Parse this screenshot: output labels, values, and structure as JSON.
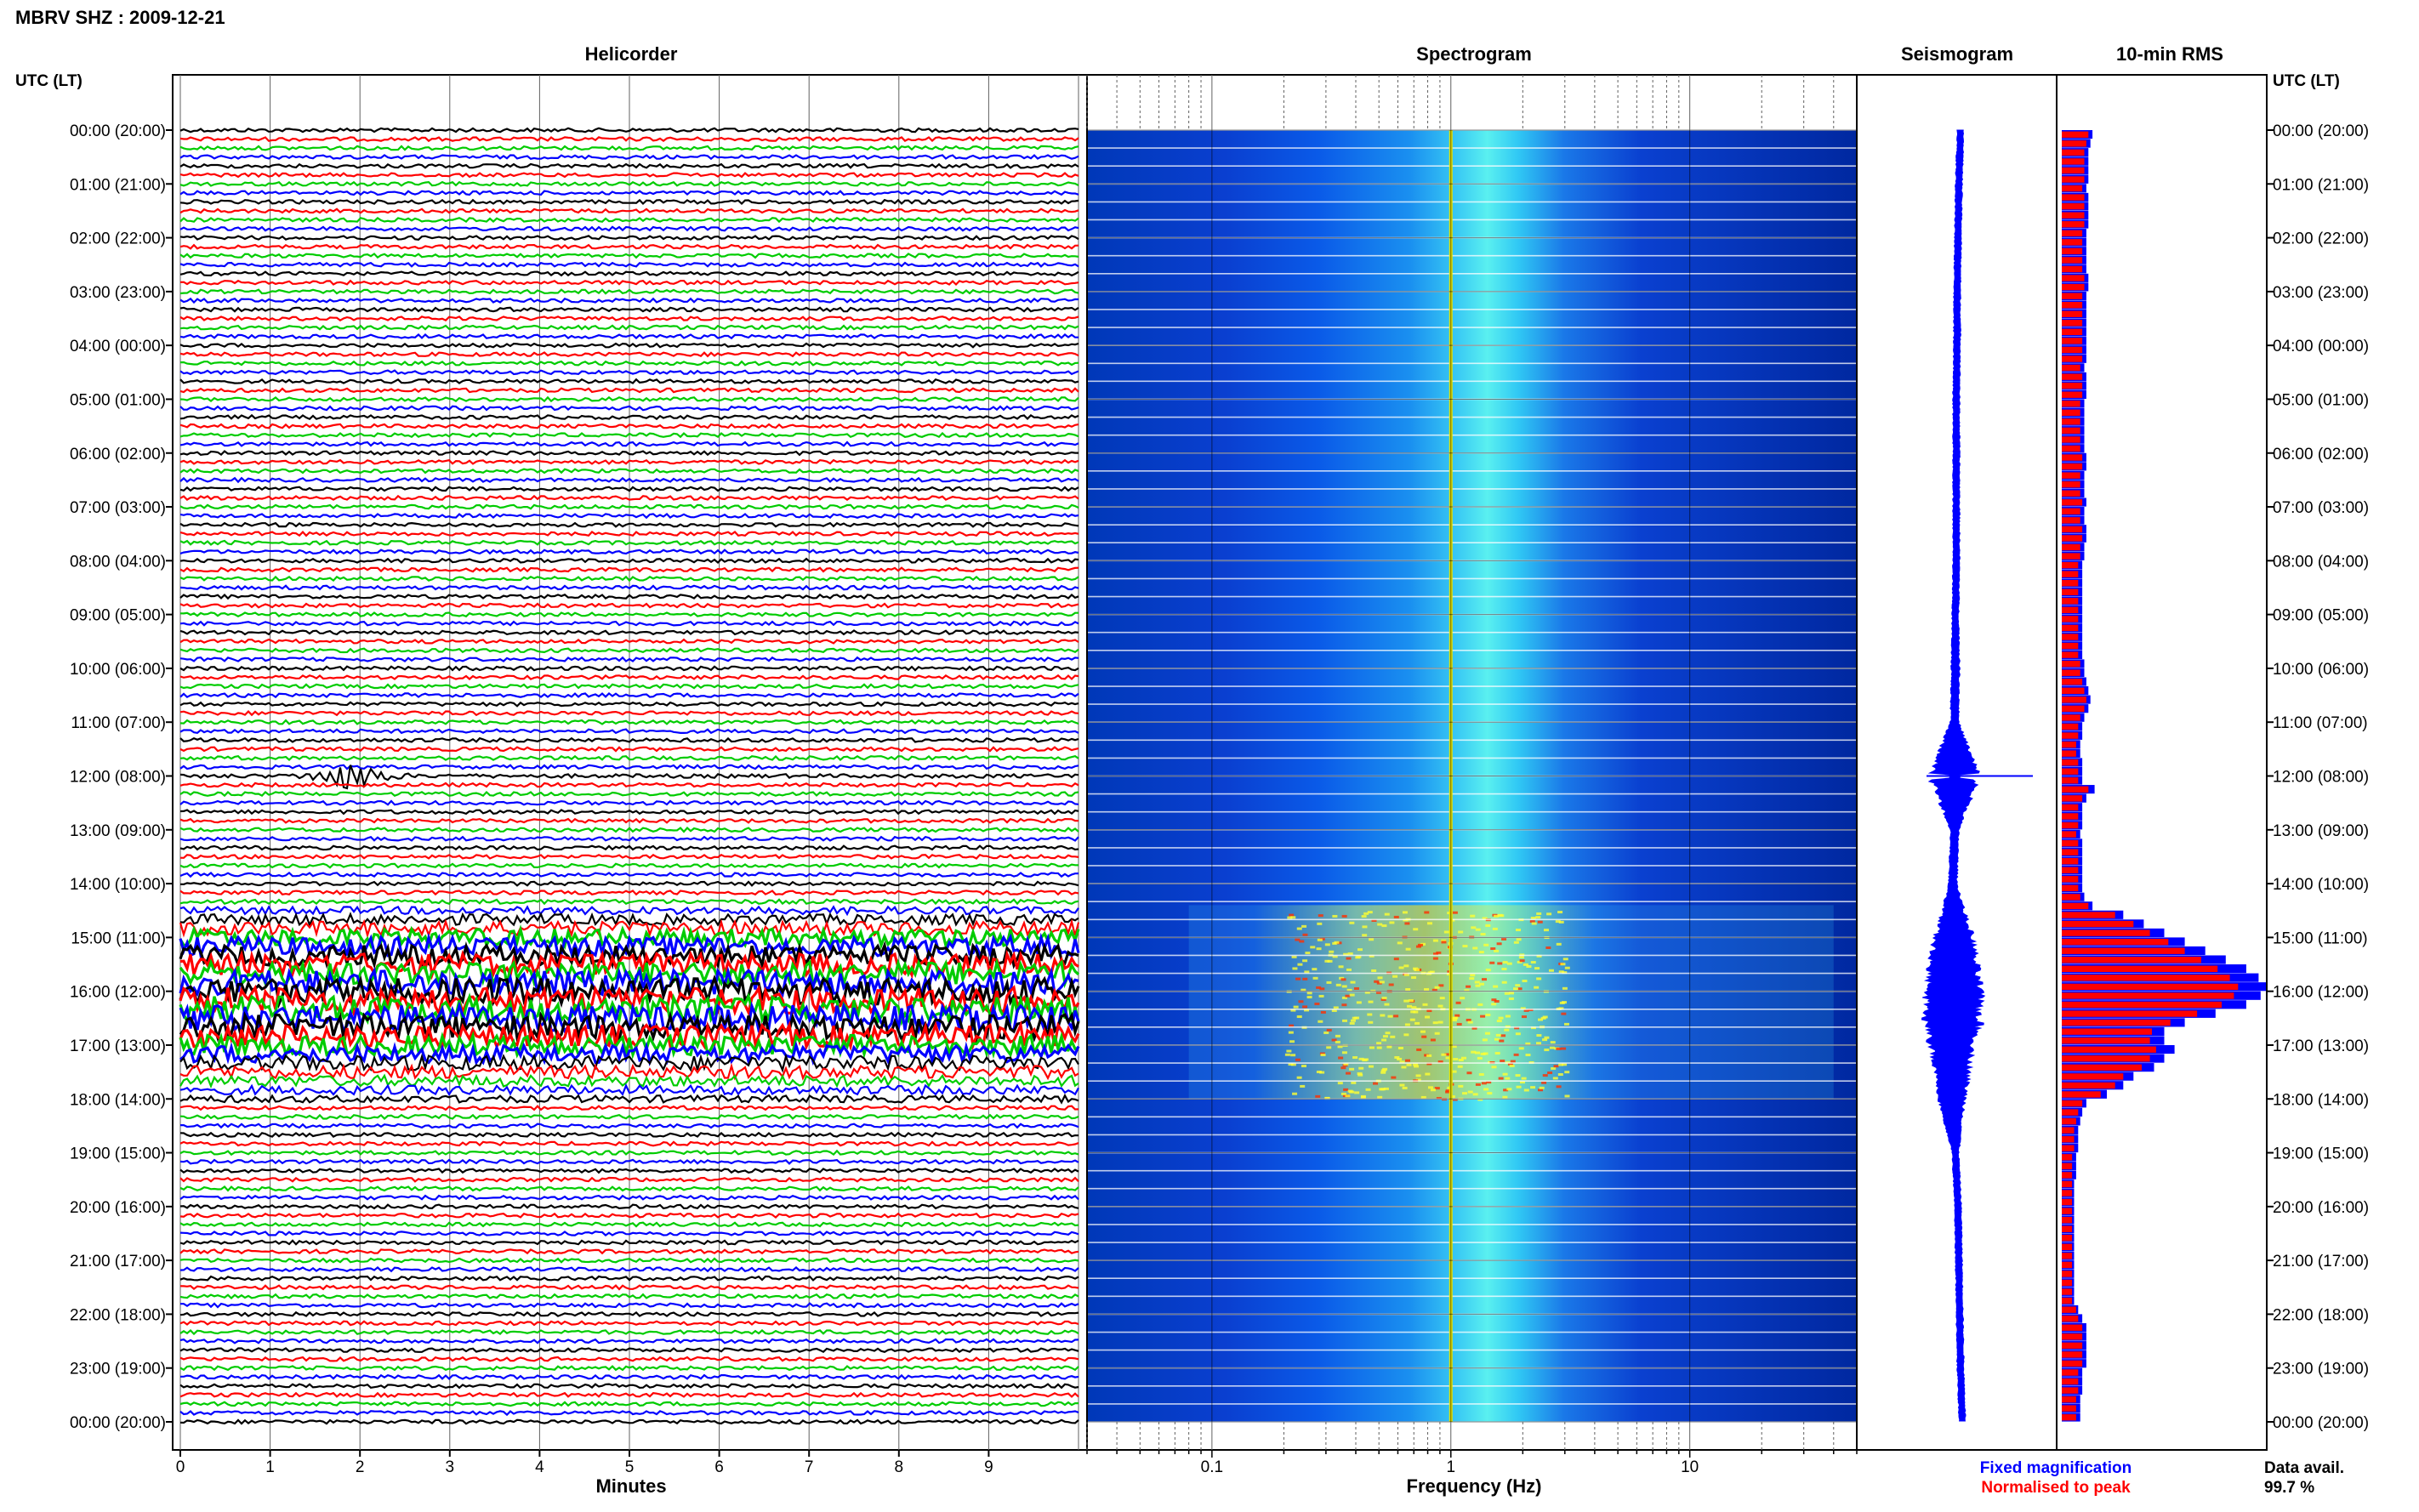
{
  "page": {
    "station_title": "MBRV SHZ : 2009-12-21",
    "panel_titles": {
      "helicorder": "Helicorder",
      "spectrogram": "Spectrogram",
      "seismogram": "Seismogram",
      "rms": "10-min RMS"
    },
    "time_axis_label_left": "UTC (LT)",
    "time_axis_label_right": "UTC (LT)",
    "legend": {
      "fixed": "Fixed magnification",
      "normalised": "Normalised to peak",
      "fixed_color": "#0000ff",
      "normalised_color": "#ff0000"
    },
    "data_avail_label": "Data avail.",
    "data_avail_value": "99.7 %"
  },
  "chart_data": [
    {
      "type": "line",
      "panel": "helicorder",
      "title": "Helicorder",
      "xlabel": "Minutes",
      "ylabel": "UTC (LT)",
      "xlim": [
        0,
        10
      ],
      "xticks": [
        "0",
        "1",
        "2",
        "3",
        "4",
        "5",
        "6",
        "7",
        "8",
        "9"
      ],
      "ytick_labels": [
        "00:00 (20:00)",
        "01:00 (21:00)",
        "02:00 (22:00)",
        "03:00 (23:00)",
        "04:00 (00:00)",
        "05:00 (01:00)",
        "06:00 (02:00)",
        "07:00 (03:00)",
        "08:00 (04:00)",
        "09:00 (05:00)",
        "10:00 (06:00)",
        "11:00 (07:00)",
        "12:00 (08:00)",
        "13:00 (09:00)",
        "14:00 (10:00)",
        "15:00 (11:00)",
        "16:00 (12:00)",
        "17:00 (13:00)",
        "18:00 (14:00)",
        "19:00 (15:00)",
        "20:00 (16:00)",
        "21:00 (17:00)",
        "22:00 (18:00)",
        "23:00 (19:00)",
        "00:00 (20:00)"
      ],
      "trace_colors": [
        "#000000",
        "#ff0000",
        "#00cc00",
        "#0000ff"
      ],
      "trace_count": 144,
      "events": [
        {
          "time_utc": "12:00",
          "minute_start": 1.2,
          "minute_end": 2.6,
          "amplitude": "large"
        }
      ],
      "tremor_episode": {
        "start_utc": "14:20",
        "peak_utc": "16:00",
        "end_utc": "18:00"
      }
    },
    {
      "type": "heatmap",
      "panel": "spectrogram",
      "title": "Spectrogram",
      "xlabel": "Frequency (Hz)",
      "xscale": "log",
      "xlim": [
        0.03,
        50
      ],
      "xticks": [
        "0.1",
        "1",
        "10"
      ],
      "dominant_frequency_hz": 1.0,
      "colormap": [
        "#00008b",
        "#0050ff",
        "#00c0ff",
        "#40ffff",
        "#ffff00",
        "#ff0000"
      ]
    },
    {
      "type": "line",
      "panel": "seismogram",
      "title": "Seismogram",
      "x": [
        "00:00",
        "01:00",
        "02:00",
        "03:00",
        "04:00",
        "05:00",
        "06:00",
        "07:00",
        "08:00",
        "09:00",
        "10:00",
        "11:00",
        "12:00",
        "13:00",
        "14:00",
        "15:00",
        "16:00",
        "17:00",
        "18:00",
        "19:00",
        "20:00",
        "21:00",
        "22:00",
        "23:00",
        "24:00"
      ],
      "half_width": [
        4,
        4,
        4,
        4,
        4,
        4,
        4,
        4,
        4,
        4,
        5,
        5,
        30,
        5,
        5,
        22,
        28,
        26,
        16,
        4,
        4,
        4,
        4,
        4,
        4
      ],
      "offset": [
        0,
        -2,
        -3,
        -4,
        -4,
        -5,
        -5,
        -5,
        -5,
        -6,
        -6,
        -7,
        -7,
        -7,
        -9,
        -8,
        -9,
        -10,
        -10,
        -6,
        -3,
        -2,
        -1,
        0,
        2
      ]
    },
    {
      "type": "bar",
      "panel": "rms",
      "title": "10-min RMS",
      "time_axis": "UTC",
      "bin_minutes": 10,
      "series": [
        {
          "name": "Fixed magnification",
          "color": "#0000ff",
          "values": [
            0.15,
            0.14,
            0.13,
            0.13,
            0.13,
            0.13,
            0.12,
            0.13,
            0.13,
            0.13,
            0.13,
            0.12,
            0.12,
            0.12,
            0.12,
            0.12,
            0.13,
            0.13,
            0.12,
            0.12,
            0.12,
            0.12,
            0.12,
            0.12,
            0.12,
            0.12,
            0.11,
            0.12,
            0.12,
            0.12,
            0.11,
            0.11,
            0.11,
            0.11,
            0.11,
            0.11,
            0.12,
            0.12,
            0.11,
            0.11,
            0.11,
            0.12,
            0.11,
            0.11,
            0.12,
            0.12,
            0.11,
            0.11,
            0.1,
            0.1,
            0.1,
            0.1,
            0.1,
            0.1,
            0.1,
            0.1,
            0.1,
            0.1,
            0.1,
            0.11,
            0.11,
            0.12,
            0.13,
            0.14,
            0.13,
            0.11,
            0.1,
            0.1,
            0.09,
            0.09,
            0.1,
            0.1,
            0.1,
            0.16,
            0.12,
            0.1,
            0.1,
            0.1,
            0.09,
            0.1,
            0.1,
            0.1,
            0.1,
            0.1,
            0.1,
            0.11,
            0.15,
            0.3,
            0.4,
            0.5,
            0.6,
            0.7,
            0.8,
            0.9,
            0.96,
            1.0,
            0.97,
            0.9,
            0.75,
            0.6,
            0.5,
            0.5,
            0.55,
            0.5,
            0.45,
            0.35,
            0.3,
            0.22,
            0.12,
            0.1,
            0.09,
            0.08,
            0.08,
            0.08,
            0.07,
            0.07,
            0.07,
            0.06,
            0.06,
            0.06,
            0.06,
            0.06,
            0.06,
            0.06,
            0.06,
            0.06,
            0.06,
            0.06,
            0.06,
            0.06,
            0.06,
            0.08,
            0.1,
            0.12,
            0.12,
            0.12,
            0.12,
            0.12,
            0.1,
            0.1,
            0.1,
            0.09,
            0.09,
            0.09
          ]
        },
        {
          "name": "Normalised to peak",
          "color": "#ff0000",
          "values": [
            0.13,
            0.12,
            0.11,
            0.11,
            0.11,
            0.11,
            0.1,
            0.11,
            0.11,
            0.11,
            0.11,
            0.1,
            0.1,
            0.1,
            0.1,
            0.1,
            0.11,
            0.11,
            0.1,
            0.1,
            0.1,
            0.1,
            0.1,
            0.1,
            0.1,
            0.1,
            0.09,
            0.1,
            0.1,
            0.1,
            0.09,
            0.09,
            0.09,
            0.09,
            0.09,
            0.09,
            0.1,
            0.1,
            0.09,
            0.09,
            0.09,
            0.1,
            0.09,
            0.09,
            0.1,
            0.1,
            0.09,
            0.09,
            0.08,
            0.08,
            0.08,
            0.08,
            0.08,
            0.08,
            0.08,
            0.08,
            0.08,
            0.08,
            0.08,
            0.09,
            0.09,
            0.1,
            0.11,
            0.12,
            0.11,
            0.09,
            0.08,
            0.08,
            0.07,
            0.07,
            0.08,
            0.08,
            0.08,
            0.13,
            0.1,
            0.08,
            0.08,
            0.08,
            0.07,
            0.08,
            0.08,
            0.08,
            0.08,
            0.08,
            0.08,
            0.09,
            0.13,
            0.26,
            0.35,
            0.43,
            0.52,
            0.6,
            0.68,
            0.76,
            0.82,
            0.86,
            0.84,
            0.78,
            0.66,
            0.53,
            0.44,
            0.43,
            0.46,
            0.43,
            0.39,
            0.3,
            0.26,
            0.19,
            0.1,
            0.08,
            0.07,
            0.06,
            0.06,
            0.06,
            0.05,
            0.05,
            0.05,
            0.05,
            0.05,
            0.05,
            0.05,
            0.05,
            0.05,
            0.05,
            0.05,
            0.05,
            0.05,
            0.05,
            0.05,
            0.05,
            0.05,
            0.07,
            0.08,
            0.1,
            0.1,
            0.1,
            0.1,
            0.1,
            0.08,
            0.08,
            0.08,
            0.07,
            0.07,
            0.07
          ]
        }
      ]
    }
  ]
}
